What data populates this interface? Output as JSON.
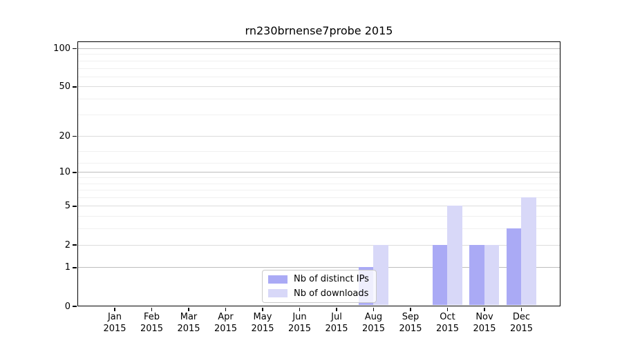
{
  "chart_data": {
    "type": "bar",
    "title": "rn230brnense7probe 2015",
    "x_months": [
      "Jan",
      "Feb",
      "Mar",
      "Apr",
      "May",
      "Jun",
      "Jul",
      "Aug",
      "Sep",
      "Oct",
      "Nov",
      "Dec"
    ],
    "x_year": "2015",
    "series": [
      {
        "name": "Nb of distinct IPs",
        "color": "#aaaaf5",
        "values": [
          0,
          0,
          0,
          0,
          0,
          0,
          0,
          1,
          0,
          2,
          2,
          3
        ]
      },
      {
        "name": "Nb of downloads",
        "color": "#d8d8f8",
        "values": [
          0,
          0,
          0,
          0,
          0,
          0,
          0,
          2,
          0,
          5,
          2,
          6
        ]
      }
    ],
    "y_scale": "log1p",
    "y_ticks": [
      0,
      1,
      2,
      5,
      10,
      20,
      50,
      100
    ],
    "y_tick_labels": [
      "0",
      "1",
      "2",
      "5",
      "10",
      "20",
      "50",
      "100"
    ],
    "y_decade_ticks": [
      1,
      10,
      100
    ],
    "y_minor_ticks": [
      3,
      4,
      6,
      7,
      8,
      9,
      12,
      15,
      30,
      40,
      60,
      70,
      80,
      90
    ],
    "ylim": [
      0,
      114
    ],
    "grid": true,
    "legend_position": "lower center"
  },
  "colors": {
    "background": "#ffffff",
    "axis": "#000000",
    "grid_major_decade": "#bdbdbd",
    "grid_major": "#dcdcdc",
    "grid_minor": "#f0f0f0",
    "bar_distinct_ips": "#aaaaf5",
    "bar_downloads": "#d8d8f8"
  }
}
